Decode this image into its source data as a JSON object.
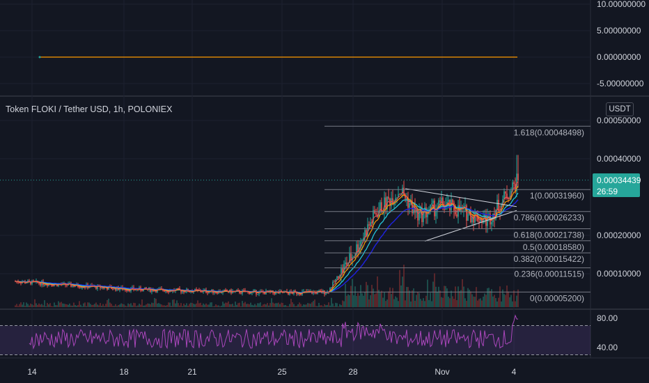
{
  "header": {
    "title": "Token FLOKI / Tether USD, 1h, POLONIEX",
    "currency": "USDT"
  },
  "last_price": {
    "value": "0.00034439",
    "countdown": "26:59"
  },
  "colors": {
    "background": "#131722",
    "ema_red": "#ef5350",
    "ema_orange": "#ff9800",
    "ema_teal": "#26c6da",
    "ema_blue": "#1e22d8",
    "rsi": "#ab47bc",
    "fib": "#787b86"
  },
  "chart_data": [
    {
      "type": "line",
      "panel": "top-indicator",
      "y_ticks": [
        "10.00000000",
        "5.00000000",
        "0.00000000",
        "-5.00000000"
      ],
      "y_tick_values": [
        10,
        5,
        0,
        -5
      ],
      "ylim": [
        -5.5,
        10.5
      ],
      "series": [
        {
          "values_x": [
            "Oct 14",
            "Nov 4"
          ],
          "values": [
            0,
            0
          ]
        }
      ]
    },
    {
      "type": "candlestick",
      "panel": "price",
      "xlabel": "",
      "ylabel": "",
      "x_ticks": [
        "14",
        "18",
        "21",
        "25",
        "28",
        "Nov",
        "4"
      ],
      "y_ticks": [
        "0.00050000",
        "0.00040000",
        "0.00020000",
        "0.00010000"
      ],
      "y_tick_values": [
        0.0005,
        0.0004,
        0.0002,
        0.0001
      ],
      "ylim": [
        2e-05,
        0.00052
      ],
      "last": 0.00034439,
      "key_points": [
        {
          "date": "Oct 14",
          "close": 8e-05
        },
        {
          "date": "Oct 18",
          "close": 6e-05
        },
        {
          "date": "Oct 21",
          "close": 5.5e-05
        },
        {
          "date": "Oct 25",
          "close": 5e-05
        },
        {
          "date": "Oct 27",
          "close": 5.2e-05
        },
        {
          "date": "Oct 28",
          "close": 0.00015
        },
        {
          "date": "Oct 29",
          "close": 0.00026
        },
        {
          "date": "Oct 30",
          "close": 0.0003196
        },
        {
          "date": "Oct 31",
          "close": 0.00025
        },
        {
          "date": "Nov 1",
          "close": 0.00028
        },
        {
          "date": "Nov 3",
          "close": 0.00024
        },
        {
          "date": "Nov 4",
          "close": 0.00034439
        }
      ],
      "fibonacci": [
        {
          "label": "1.618(0.00048498)",
          "value": 0.00048498
        },
        {
          "label": "1(0.00031960)",
          "value": 0.0003196
        },
        {
          "label": "0.786(0.00026233)",
          "value": 0.00026233
        },
        {
          "label": "0.618(0.00021738)",
          "value": 0.00021738
        },
        {
          "label": "0.5(0.00018580)",
          "value": 0.0001858
        },
        {
          "label": "0.382(0.00015422)",
          "value": 0.00015422
        },
        {
          "label": "0.236(0.00011515)",
          "value": 0.00011515
        },
        {
          "label": "0(0.00005200)",
          "value": 5.2e-05
        }
      ]
    },
    {
      "type": "line",
      "panel": "rsi",
      "y_ticks": [
        "80.00",
        "40.00"
      ],
      "y_tick_values": [
        80,
        40
      ],
      "bands": [
        70,
        30
      ],
      "ylim": [
        25,
        95
      ]
    }
  ]
}
